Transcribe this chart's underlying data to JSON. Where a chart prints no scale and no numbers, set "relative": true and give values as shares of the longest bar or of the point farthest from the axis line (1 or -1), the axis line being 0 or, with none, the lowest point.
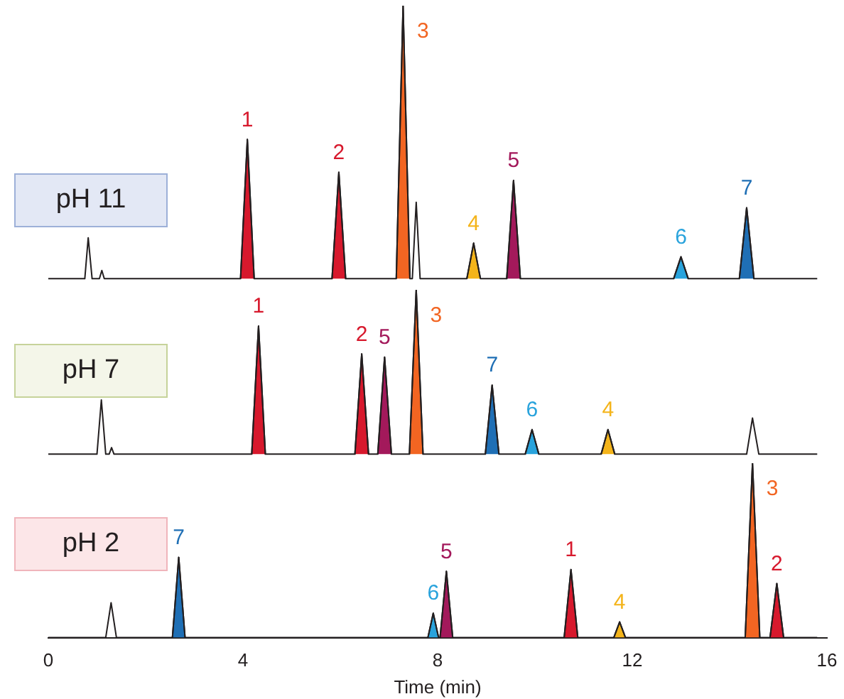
{
  "chart_data": [
    {
      "type": "line",
      "title": "pH 11",
      "relative": true,
      "xlim": [
        0,
        16
      ],
      "xticks": [
        0,
        4,
        8,
        12,
        16
      ],
      "tick_labels": false,
      "grid": false,
      "legend": false,
      "marker": "none",
      "series": [
        {
          "color": "#231f20",
          "x": [
            0,
            0.75,
            0.82,
            0.9,
            1.05,
            1.1,
            1.15,
            3.95,
            4.09,
            4.23,
            5.83,
            5.97,
            6.11,
            7.15,
            7.29,
            7.43,
            7.48,
            7.56,
            7.64,
            8.6,
            8.74,
            8.88,
            9.42,
            9.56,
            9.7,
            12.85,
            13.0,
            13.15,
            14.2,
            14.35,
            14.5,
            15.8
          ],
          "values": [
            0,
            0,
            0.15,
            0,
            0,
            0.03,
            0,
            0,
            0.51,
            0,
            0,
            0.39,
            0,
            0,
            1.0,
            0,
            0,
            0.28,
            0,
            0,
            0.13,
            0,
            0,
            0.36,
            0,
            0,
            0.08,
            0,
            0,
            0.26,
            0,
            0
          ]
        },
        {
          "type": "area",
          "name": "1",
          "color": "#d7192d",
          "x": [
            3.95,
            4.09,
            4.23
          ],
          "values": [
            0,
            0.51,
            0
          ]
        },
        {
          "type": "area",
          "name": "2",
          "color": "#d7192d",
          "x": [
            5.83,
            5.97,
            6.11
          ],
          "values": [
            0,
            0.39,
            0
          ]
        },
        {
          "type": "area",
          "name": "3",
          "color": "#f26522",
          "x": [
            7.15,
            7.29,
            7.43
          ],
          "values": [
            0,
            1.0,
            0
          ]
        },
        {
          "type": "area",
          "name": "4",
          "color": "#f4b41a",
          "x": [
            8.6,
            8.74,
            8.88
          ],
          "values": [
            0,
            0.13,
            0
          ]
        },
        {
          "type": "area",
          "name": "5",
          "color": "#a3195b",
          "x": [
            9.42,
            9.56,
            9.7
          ],
          "values": [
            0,
            0.36,
            0
          ]
        },
        {
          "type": "area",
          "name": "6",
          "color": "#29a3dc",
          "x": [
            12.85,
            13.0,
            13.15
          ],
          "values": [
            0,
            0.08,
            0
          ]
        },
        {
          "type": "area",
          "name": "7",
          "color": "#1f6fb5",
          "x": [
            14.2,
            14.35,
            14.5
          ],
          "values": [
            0,
            0.26,
            0
          ]
        }
      ]
    },
    {
      "type": "line",
      "title": "pH 7",
      "relative": true,
      "xlim": [
        0,
        16
      ],
      "xticks": [
        0,
        4,
        8,
        12,
        16
      ],
      "tick_labels": false,
      "grid": false,
      "legend": false,
      "marker": "none",
      "series": [
        {
          "color": "#231f20",
          "x": [
            0,
            1.0,
            1.09,
            1.18,
            1.25,
            1.3,
            1.35,
            4.18,
            4.32,
            4.46,
            6.3,
            6.44,
            6.58,
            6.77,
            6.91,
            7.05,
            7.42,
            7.56,
            7.7,
            8.98,
            9.12,
            9.26,
            9.8,
            9.94,
            10.08,
            11.36,
            11.5,
            11.64,
            14.35,
            14.47,
            14.6,
            15.8
          ],
          "values": [
            0,
            0,
            0.33,
            0,
            0,
            0.04,
            0,
            0,
            0.78,
            0,
            0,
            0.61,
            0,
            0,
            0.59,
            0,
            0,
            1.0,
            0,
            0,
            0.42,
            0,
            0,
            0.15,
            0,
            0,
            0.15,
            0,
            0,
            0.22,
            0,
            0
          ]
        },
        {
          "type": "area",
          "name": "1",
          "color": "#d7192d",
          "x": [
            4.18,
            4.32,
            4.46
          ],
          "values": [
            0,
            0.78,
            0
          ]
        },
        {
          "type": "area",
          "name": "2",
          "color": "#d7192d",
          "x": [
            6.3,
            6.44,
            6.58
          ],
          "values": [
            0,
            0.61,
            0
          ]
        },
        {
          "type": "area",
          "name": "5",
          "color": "#a3195b",
          "x": [
            6.77,
            6.91,
            7.05
          ],
          "values": [
            0,
            0.59,
            0
          ]
        },
        {
          "type": "area",
          "name": "3",
          "color": "#f26522",
          "x": [
            7.42,
            7.56,
            7.7
          ],
          "values": [
            0,
            1.0,
            0
          ]
        },
        {
          "type": "area",
          "name": "7",
          "color": "#1f6fb5",
          "x": [
            8.98,
            9.12,
            9.26
          ],
          "values": [
            0,
            0.42,
            0
          ]
        },
        {
          "type": "area",
          "name": "6",
          "color": "#29a3dc",
          "x": [
            9.8,
            9.94,
            10.08
          ],
          "values": [
            0,
            0.15,
            0
          ]
        },
        {
          "type": "area",
          "name": "4",
          "color": "#f4b41a",
          "x": [
            11.36,
            11.5,
            11.64
          ],
          "values": [
            0,
            0.15,
            0
          ]
        }
      ]
    },
    {
      "type": "line",
      "title": "pH 2",
      "relative": true,
      "xlim": [
        0,
        16
      ],
      "xticks": [
        0,
        4,
        8,
        12,
        16
      ],
      "tick_labels": "x",
      "xlabel": "Time (min)",
      "grid": false,
      "legend": false,
      "marker": "none",
      "series": [
        {
          "color": "#231f20",
          "x": [
            0,
            1.18,
            1.29,
            1.4,
            2.55,
            2.68,
            2.81,
            7.8,
            7.91,
            8.02,
            8.05,
            8.18,
            8.31,
            10.6,
            10.74,
            10.88,
            11.62,
            11.74,
            11.86,
            14.32,
            14.47,
            14.62,
            14.83,
            14.97,
            15.11,
            15.8
          ],
          "values": [
            0,
            0,
            0.2,
            0,
            0,
            0.46,
            0,
            0,
            0.14,
            0,
            0,
            0.38,
            0,
            0,
            0.39,
            0,
            0,
            0.09,
            0,
            0,
            1.0,
            0,
            0,
            0.31,
            0,
            0
          ]
        },
        {
          "type": "area",
          "name": "7",
          "color": "#1f6fb5",
          "x": [
            2.55,
            2.68,
            2.81
          ],
          "values": [
            0,
            0.46,
            0
          ]
        },
        {
          "type": "area",
          "name": "6",
          "color": "#29a3dc",
          "x": [
            7.8,
            7.91,
            8.02
          ],
          "values": [
            0,
            0.14,
            0
          ]
        },
        {
          "type": "area",
          "name": "5",
          "color": "#a3195b",
          "x": [
            8.05,
            8.18,
            8.31
          ],
          "values": [
            0,
            0.38,
            0
          ]
        },
        {
          "type": "area",
          "name": "1",
          "color": "#d7192d",
          "x": [
            10.6,
            10.74,
            10.88
          ],
          "values": [
            0,
            0.39,
            0
          ]
        },
        {
          "type": "area",
          "name": "4",
          "color": "#f4b41a",
          "x": [
            11.62,
            11.74,
            11.86
          ],
          "values": [
            0,
            0.09,
            0
          ]
        },
        {
          "type": "area",
          "name": "3",
          "color": "#f26522",
          "x": [
            14.32,
            14.47,
            14.62
          ],
          "values": [
            0,
            1.0,
            0
          ]
        },
        {
          "type": "area",
          "name": "2",
          "color": "#d7192d",
          "x": [
            14.83,
            14.97,
            15.11
          ],
          "values": [
            0,
            0.31,
            0
          ]
        }
      ]
    }
  ]
}
